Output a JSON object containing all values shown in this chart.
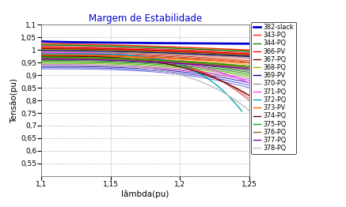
{
  "title": "Margem de Estabilidade",
  "xlabel": "lâmbda(pu)",
  "ylabel": "Tensão(pu)",
  "xlim": [
    1.1,
    1.25
  ],
  "ylim": [
    0.5,
    1.1
  ],
  "yticks": [
    0.55,
    0.6,
    0.65,
    0.7,
    0.75,
    0.8,
    0.85,
    0.9,
    0.95,
    1.0,
    1.05,
    1.1
  ],
  "xticks": [
    1.1,
    1.15,
    1.2,
    1.25
  ],
  "background_color": "#ffffff",
  "title_color": "#0000cc",
  "grid_color": "#aaaaaa",
  "fig_width": 4.37,
  "fig_height": 2.62,
  "dpi": 100,
  "curve_params": [
    {
      "label": "382-slack",
      "color": "#0000cc",
      "v0": 1.035,
      "v1": 1.025,
      "lam_end": 1.25,
      "power": 0.5,
      "lw": 2.0
    },
    {
      "label": "343-PQ",
      "color": "#ff2200",
      "v0": 1.025,
      "v1": 1.0,
      "lam_end": 1.25,
      "power": 1.5,
      "lw": 1.0
    },
    {
      "label": "344-PQ",
      "color": "#008800",
      "v0": 1.02,
      "v1": 0.995,
      "lam_end": 1.25,
      "power": 1.5,
      "lw": 1.0
    },
    {
      "label": "366-PV",
      "color": "#ff0000",
      "v0": 1.01,
      "v1": 0.985,
      "lam_end": 1.25,
      "power": 1.6,
      "lw": 1.0
    },
    {
      "label": "367-PQ",
      "color": "#880000",
      "v0": 1.005,
      "v1": 0.98,
      "lam_end": 1.25,
      "power": 1.6,
      "lw": 1.0
    },
    {
      "label": "368-PQ",
      "color": "#aaaa00",
      "v0": 1.002,
      "v1": 0.978,
      "lam_end": 1.25,
      "power": 1.6,
      "lw": 1.0
    },
    {
      "label": "369-PV",
      "color": "#000088",
      "v0": 0.998,
      "v1": 0.975,
      "lam_end": 1.25,
      "power": 1.7,
      "lw": 1.0
    },
    {
      "label": "370-PQ",
      "color": "#999999",
      "v0": 0.994,
      "v1": 0.97,
      "lam_end": 1.25,
      "power": 1.8,
      "lw": 1.0
    },
    {
      "label": "371-PQ",
      "color": "#ff44ff",
      "v0": 0.99,
      "v1": 0.87,
      "lam_end": 1.25,
      "power": 2.8,
      "lw": 1.0
    },
    {
      "label": "372-PQ",
      "color": "#00aaaa",
      "v0": 0.985,
      "v1": 0.755,
      "lam_end": 1.245,
      "power": 4.5,
      "lw": 1.0
    },
    {
      "label": "373-PV",
      "color": "#ff6600",
      "v0": 0.98,
      "v1": 0.95,
      "lam_end": 1.25,
      "power": 1.8,
      "lw": 1.0
    },
    {
      "label": "374-PQ",
      "color": "#770000",
      "v0": 0.976,
      "v1": 0.82,
      "lam_end": 1.25,
      "power": 3.2,
      "lw": 1.0
    },
    {
      "label": "375-PQ",
      "color": "#00aa00",
      "v0": 0.972,
      "v1": 0.935,
      "lam_end": 1.25,
      "power": 2.0,
      "lw": 1.0
    },
    {
      "label": "376-PQ",
      "color": "#886622",
      "v0": 0.968,
      "v1": 0.93,
      "lam_end": 1.25,
      "power": 2.0,
      "lw": 1.0
    },
    {
      "label": "377-PQ",
      "color": "#7700aa",
      "v0": 0.964,
      "v1": 0.925,
      "lam_end": 1.25,
      "power": 2.0,
      "lw": 1.0
    },
    {
      "label": "378-PQ",
      "color": "#c0c0c0",
      "v0": 0.94,
      "v1": 0.76,
      "lam_end": 1.25,
      "power": 3.8,
      "lw": 1.0
    }
  ],
  "extra_curves": [
    {
      "color": "#cc0000",
      "v0": 1.015,
      "v1": 0.99,
      "lam_end": 1.25,
      "power": 1.5
    },
    {
      "color": "#ff4444",
      "v0": 1.008,
      "v1": 0.983,
      "lam_end": 1.25,
      "power": 1.6
    },
    {
      "color": "#cc3300",
      "v0": 1.003,
      "v1": 0.977,
      "lam_end": 1.25,
      "power": 1.7
    },
    {
      "color": "#aa0000",
      "v0": 0.999,
      "v1": 0.972,
      "lam_end": 1.25,
      "power": 1.8
    },
    {
      "color": "#ff6666",
      "v0": 0.995,
      "v1": 0.965,
      "lam_end": 1.25,
      "power": 1.9
    },
    {
      "color": "#dd2200",
      "v0": 0.992,
      "v1": 0.958,
      "lam_end": 1.25,
      "power": 2.0
    },
    {
      "color": "#bb1100",
      "v0": 0.988,
      "v1": 0.953,
      "lam_end": 1.25,
      "power": 2.0
    },
    {
      "color": "#993300",
      "v0": 0.984,
      "v1": 0.948,
      "lam_end": 1.25,
      "power": 2.1
    },
    {
      "color": "#ff8800",
      "v0": 0.979,
      "v1": 0.942,
      "lam_end": 1.25,
      "power": 2.2
    },
    {
      "color": "#ee5500",
      "v0": 0.975,
      "v1": 0.936,
      "lam_end": 1.25,
      "power": 2.2
    },
    {
      "color": "#cc6600",
      "v0": 0.971,
      "v1": 0.93,
      "lam_end": 1.25,
      "power": 2.3
    },
    {
      "color": "#aa4400",
      "v0": 0.967,
      "v1": 0.924,
      "lam_end": 1.25,
      "power": 2.3
    },
    {
      "color": "#004400",
      "v0": 0.963,
      "v1": 0.918,
      "lam_end": 1.25,
      "power": 2.4
    },
    {
      "color": "#006600",
      "v0": 0.959,
      "v1": 0.912,
      "lam_end": 1.25,
      "power": 2.4
    },
    {
      "color": "#228800",
      "v0": 0.955,
      "v1": 0.906,
      "lam_end": 1.25,
      "power": 2.5
    },
    {
      "color": "#44aa00",
      "v0": 0.951,
      "v1": 0.9,
      "lam_end": 1.25,
      "power": 2.5
    },
    {
      "color": "#66cc00",
      "v0": 0.947,
      "v1": 0.894,
      "lam_end": 1.25,
      "power": 2.6
    },
    {
      "color": "#cc44cc",
      "v0": 0.943,
      "v1": 0.887,
      "lam_end": 1.25,
      "power": 2.6
    },
    {
      "color": "#aa22aa",
      "v0": 0.939,
      "v1": 0.88,
      "lam_end": 1.25,
      "power": 2.7
    },
    {
      "color": "#0000aa",
      "v0": 0.935,
      "v1": 0.87,
      "lam_end": 1.25,
      "power": 2.8
    },
    {
      "color": "#3333cc",
      "v0": 0.93,
      "v1": 0.86,
      "lam_end": 1.25,
      "power": 2.9
    },
    {
      "color": "#5555dd",
      "v0": 0.925,
      "v1": 0.85,
      "lam_end": 1.25,
      "power": 3.0
    },
    {
      "color": "#ee4444",
      "v0": 0.985,
      "v1": 0.81,
      "lam_end": 1.25,
      "power": 3.5
    },
    {
      "color": "#cc2222",
      "v0": 0.982,
      "v1": 0.8,
      "lam_end": 1.25,
      "power": 3.8
    }
  ]
}
